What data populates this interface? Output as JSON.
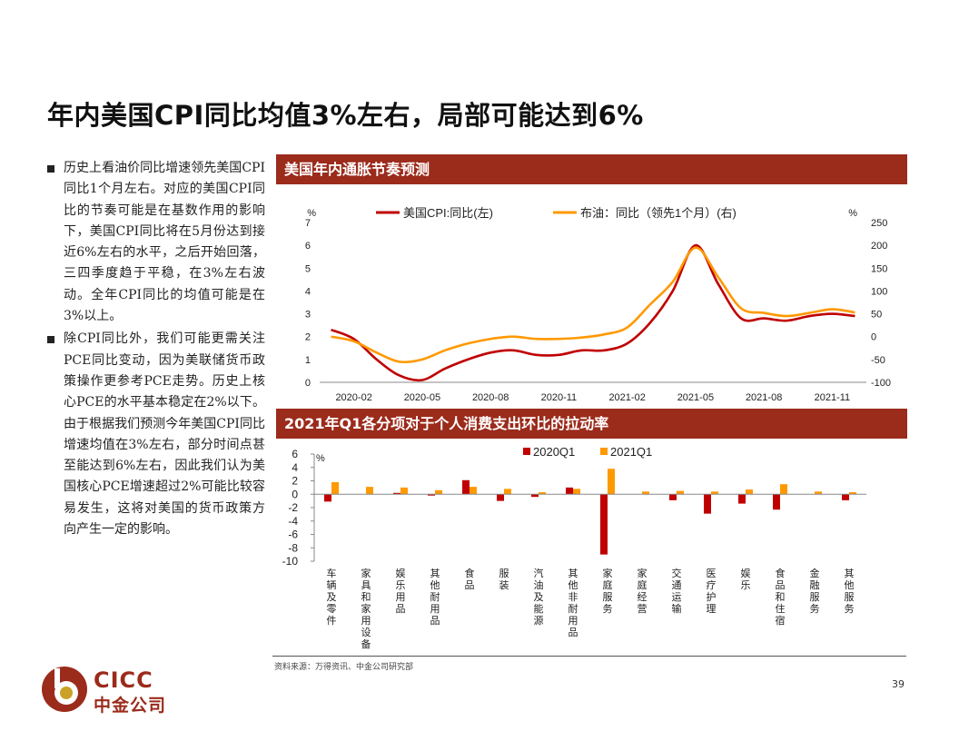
{
  "page": {
    "title": "年内美国CPI同比均值3%左右，局部可能达到6%",
    "page_number": "39",
    "source": "资料来源：万得资讯、中金公司研究部",
    "logo_en": "CICC",
    "logo_cn": "中金公司"
  },
  "bullets": [
    "历史上看油价同比增速领先美国CPI同比1个月左右。对应的美国CPI同比的节奏可能是在基数作用的影响下，美国CPI同比将在5月份达到接近6%左右的水平，之后开始回落，三四季度趋于平稳，在3%左右波动。全年CPI同比的均值可能是在3%以上。",
    "除CPI同比外，我们可能更需关注PCE同比变动，因为美联储货币政策操作更参考PCE走势。历史上核心PCE的水平基本稳定在2%以下。由于根据我们预测今年美国CPI同比增速均值在3%左右，部分时间点甚至能达到6%左右，因此我们认为美国核心PCE增速超过2%可能比较容易发生，这将对美国的货币政策方向产生一定的影响。"
  ],
  "panels": {
    "chart1_title": "美国年内通胀节奏预测",
    "chart2_title": "2021年Q1各分项对于个人消费支出环比的拉动率"
  },
  "colors": {
    "red": "#c00000",
    "orange": "#ff9900",
    "header": "#9b2b1b"
  },
  "chart_data": [
    {
      "type": "line",
      "left_unit": "%",
      "right_unit": "%",
      "ylim_left": [
        0,
        7
      ],
      "ylim_right": [
        -100,
        250
      ],
      "yticks_left": [
        0,
        1,
        2,
        3,
        4,
        5,
        6,
        7
      ],
      "yticks_right": [
        -100,
        -50,
        0,
        50,
        100,
        150,
        200,
        250
      ],
      "xtick_labels": [
        "2020-02",
        "2020-05",
        "2020-08",
        "2020-11",
        "2021-02",
        "2021-05",
        "2021-08",
        "2021-11"
      ],
      "x": [
        "2020-01",
        "2020-02",
        "2020-03",
        "2020-04",
        "2020-05",
        "2020-06",
        "2020-07",
        "2020-08",
        "2020-09",
        "2020-10",
        "2020-11",
        "2020-12",
        "2021-01",
        "2021-02",
        "2021-03",
        "2021-04",
        "2021-05",
        "2021-06",
        "2021-07",
        "2021-08",
        "2021-09",
        "2021-10",
        "2021-11",
        "2021-12"
      ],
      "series": [
        {
          "name": "美国CPI:同比(左)",
          "axis": "left",
          "values": [
            2.3,
            1.9,
            1.0,
            0.3,
            0.1,
            0.6,
            1.0,
            1.3,
            1.4,
            1.2,
            1.2,
            1.4,
            1.4,
            1.7,
            2.6,
            4.0,
            6.0,
            4.3,
            2.8,
            2.8,
            2.7,
            2.9,
            3.0,
            2.9
          ]
        },
        {
          "name": "布油：同比（领先1个月）(右)",
          "axis": "right",
          "values": [
            0,
            -10,
            -35,
            -55,
            -50,
            -30,
            -15,
            -5,
            0,
            -5,
            -5,
            -2,
            5,
            20,
            70,
            120,
            195,
            130,
            62,
            52,
            45,
            52,
            60,
            53
          ]
        }
      ]
    },
    {
      "type": "bar",
      "unit": "%",
      "ylim": [
        -10,
        6
      ],
      "yticks": [
        6,
        4,
        2,
        0,
        -2,
        -4,
        -6,
        -8,
        -10
      ],
      "categories": [
        "车辆及零件",
        "家具和家用设备",
        "娱乐用品",
        "其他耐用品",
        "食品",
        "服装",
        "汽油及能源",
        "其他非耐用品",
        "家庭服务",
        "家庭经营",
        "交通运输",
        "医疗护理",
        "娱乐",
        "食品和住宿",
        "金融服务",
        "其他服务"
      ],
      "series": [
        {
          "name": "2020Q1",
          "values": [
            -1.1,
            0.0,
            0.2,
            -0.2,
            2.1,
            -1.0,
            -0.4,
            1.0,
            -9.0,
            0.0,
            -0.9,
            -2.9,
            -1.4,
            -2.3,
            0.0,
            -0.9
          ]
        },
        {
          "name": "2021Q1",
          "values": [
            1.8,
            1.1,
            1.0,
            0.6,
            1.1,
            0.8,
            0.3,
            0.8,
            3.8,
            0.4,
            0.5,
            0.4,
            0.7,
            1.5,
            0.4,
            0.3
          ]
        }
      ]
    }
  ]
}
